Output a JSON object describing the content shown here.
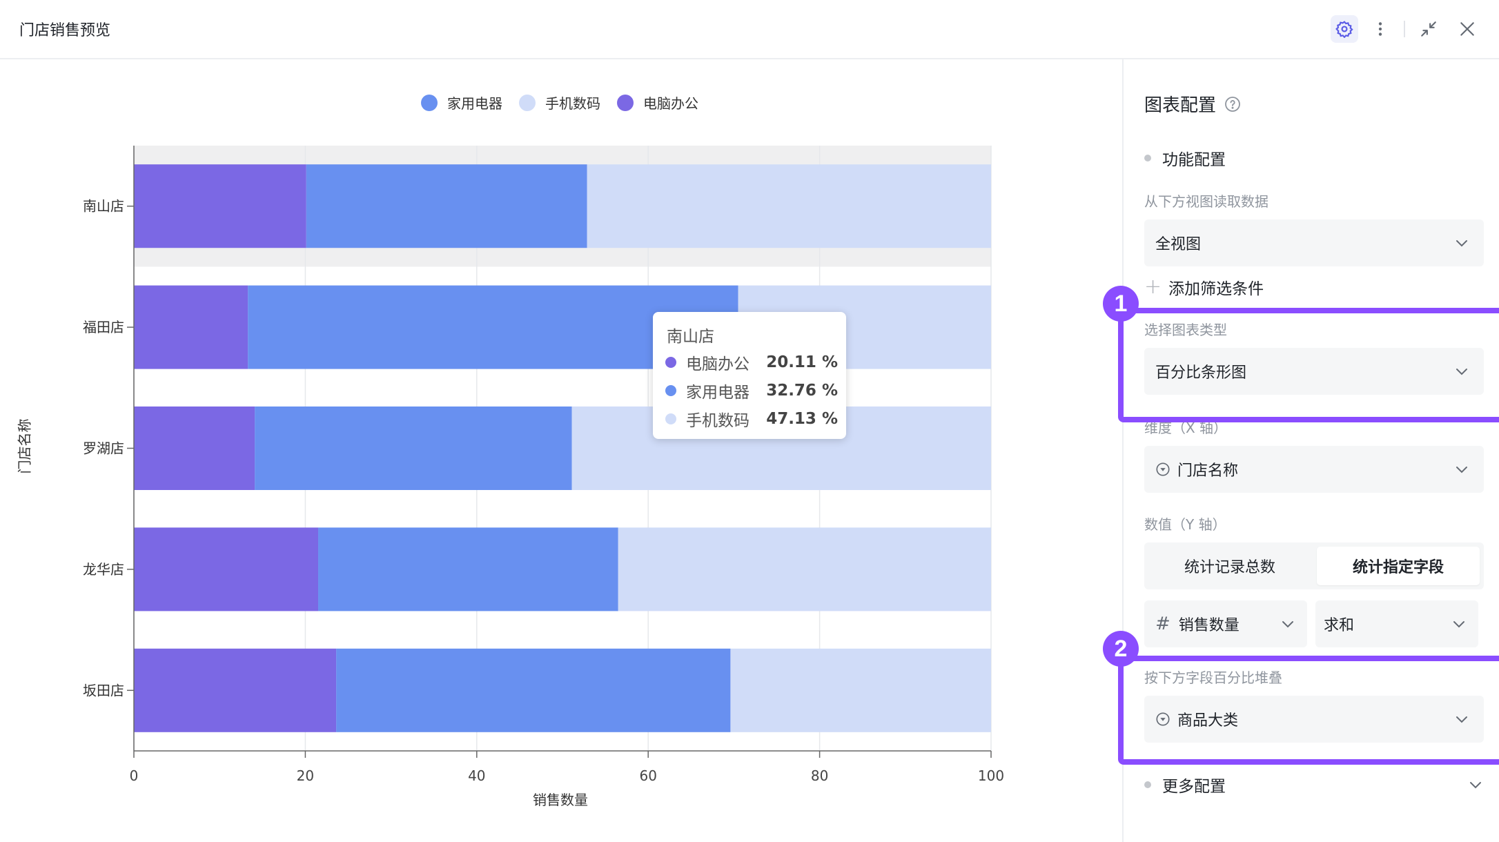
{
  "window": {
    "title": "门店销售预览",
    "icons": [
      "gear-icon",
      "more-vertical-icon",
      "collapse-icon",
      "close-icon"
    ]
  },
  "chart_data": {
    "type": "bar",
    "orientation": "horizontal",
    "stacked": "percent",
    "categories": [
      "南山店",
      "福田店",
      "罗湖店",
      "龙华店",
      "坂田店"
    ],
    "series": [
      {
        "name": "电脑办公",
        "color": "#7b68e4",
        "values": [
          20.11,
          13.3,
          14.1,
          21.5,
          23.6
        ]
      },
      {
        "name": "家用电器",
        "color": "#6890f0",
        "values": [
          32.76,
          57.2,
          37.0,
          35.0,
          46.0
        ]
      },
      {
        "name": "手机数码",
        "color": "#d0dcf8",
        "values": [
          47.13,
          29.5,
          48.9,
          43.5,
          30.4
        ]
      }
    ],
    "legend_order": [
      "家用电器",
      "手机数码",
      "电脑办公"
    ],
    "legend_position": "top-center",
    "xlabel": "销售数量",
    "ylabel": "门店名称",
    "xlim": [
      0,
      100
    ],
    "xticks": [
      "0",
      "20",
      "40",
      "60",
      "80",
      "100"
    ],
    "grid": true,
    "highlighted_category": "南山店"
  },
  "tooltip": {
    "title": "南山店",
    "rows": [
      {
        "name": "电脑办公",
        "value": "20.11 %",
        "color": "#7b68e4"
      },
      {
        "name": "家用电器",
        "value": "32.76 %",
        "color": "#6890f0"
      },
      {
        "name": "手机数码",
        "value": "47.13 %",
        "color": "#d0dcf8"
      }
    ]
  },
  "panel": {
    "title": "图表配置",
    "function_section": "功能配置",
    "data_source_label": "从下方视图读取数据",
    "data_source_value": "全视图",
    "add_filter": "添加筛选条件",
    "chart_type_label": "选择图表类型",
    "chart_type_value": "百分比条形图",
    "dimension_label": "维度（X 轴）",
    "dimension_value": "门店名称",
    "value_label": "数值（Y 轴）",
    "value_tabs": [
      "统计记录总数",
      "统计指定字段"
    ],
    "value_tab_active": 1,
    "field_value": "销售数量",
    "aggregate_value": "求和",
    "stack_label": "按下方字段百分比堆叠",
    "stack_value": "商品大类",
    "more_section": "更多配置"
  },
  "annotations": [
    "1",
    "2"
  ],
  "accent_color": "#8a4dff"
}
